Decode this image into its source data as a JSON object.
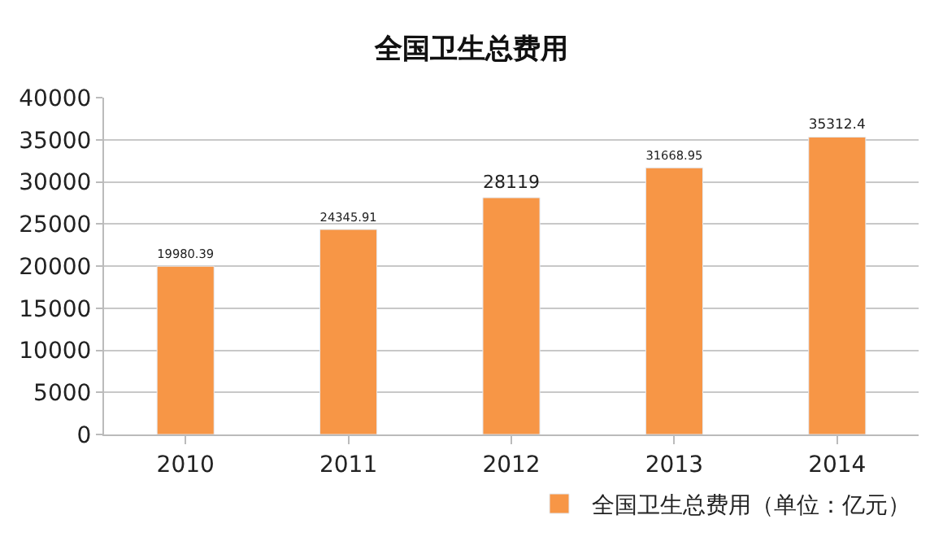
{
  "chart_data": {
    "type": "bar",
    "title": "全国卫生总费用",
    "categories": [
      "2010",
      "2011",
      "2012",
      "2013",
      "2014"
    ],
    "series": [
      {
        "name": "全国卫生总费用（单位：亿元）",
        "color": "#f79646",
        "values": [
          19980.39,
          24345.91,
          28119,
          31668.95,
          35312.4
        ]
      }
    ],
    "ylim": [
      0,
      40000
    ],
    "yticks": [
      0,
      5000,
      10000,
      15000,
      20000,
      25000,
      30000,
      35000,
      40000
    ],
    "grid": "y",
    "legend": "bottom",
    "data_labels": true
  }
}
